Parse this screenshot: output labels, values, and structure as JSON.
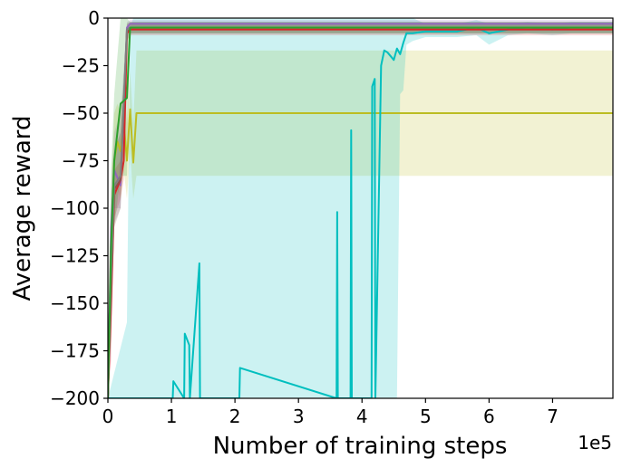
{
  "chart_data": {
    "type": "line",
    "title": "",
    "xlabel": "Number of training steps",
    "ylabel": "Average reward",
    "x_offset_label": "1e5",
    "xlim": [
      0,
      7.95
    ],
    "ylim": [
      -200,
      0
    ],
    "x_ticks": [
      0,
      1,
      2,
      3,
      4,
      5,
      6,
      7
    ],
    "x_tick_labels": [
      "0",
      "1",
      "2",
      "3",
      "4",
      "5",
      "6",
      "7"
    ],
    "y_ticks": [
      0,
      -25,
      -50,
      -75,
      -100,
      -125,
      -150,
      -175,
      -200
    ],
    "y_tick_labels": [
      "0",
      "−25",
      "−50",
      "−75",
      "−100",
      "−125",
      "−150",
      "−175",
      "−200"
    ],
    "grid": false,
    "legend": "none",
    "series": [
      {
        "color": "#bcbd22",
        "band_color": "#bcbd22",
        "x": [
          0,
          0.05,
          0.1,
          0.15,
          0.2,
          0.25,
          0.3,
          0.35,
          0.4,
          0.45,
          7.95
        ],
        "y": [
          -200,
          -120,
          -75,
          -65,
          -70,
          -55,
          -75,
          -48,
          -76,
          -50,
          -50
        ],
        "band_upper": [
          -150,
          -90,
          -50,
          -45,
          -50,
          -35,
          -55,
          -28,
          -55,
          -17,
          -17
        ],
        "band_lower": [
          -200,
          -150,
          -100,
          -90,
          -95,
          -80,
          -95,
          -70,
          -95,
          -83,
          -83
        ]
      },
      {
        "color": "#00bfbf",
        "band_color": "#00bfbf",
        "x": [
          0,
          0.3,
          0.35,
          0.4,
          1.02,
          1.03,
          1.2,
          1.21,
          1.28,
          1.29,
          1.44,
          1.45,
          1.52,
          2.07,
          2.08,
          3.6,
          3.61,
          3.62,
          3.82,
          3.83,
          3.84,
          4.15,
          4.16,
          4.2,
          4.21,
          4.3,
          4.35,
          4.4,
          4.5,
          4.55,
          4.6,
          4.65,
          4.7,
          4.8,
          5.0,
          5.5,
          5.8,
          6.0,
          6.3,
          6.6,
          7.0,
          7.3,
          7.6,
          7.95
        ],
        "y": [
          -200,
          -200,
          -200,
          -200,
          -200,
          -191,
          -200,
          -166,
          -172,
          -200,
          -129,
          -200,
          -200,
          -200,
          -184,
          -200,
          -102,
          -200,
          -200,
          -59,
          -200,
          -200,
          -36,
          -32,
          -200,
          -25,
          -17,
          -18,
          -22,
          -16,
          -19,
          -13,
          -8,
          -8,
          -7,
          -7,
          -5,
          -8,
          -6,
          -5,
          -6,
          -5,
          -5,
          -5
        ],
        "band_upper": [
          -200,
          -160,
          -5,
          0,
          0,
          0,
          0,
          0,
          0,
          0,
          0,
          0,
          0,
          0,
          0,
          0,
          0,
          0,
          0,
          0,
          0,
          0,
          0,
          0,
          0,
          0,
          0,
          0,
          0,
          0,
          0,
          0,
          0,
          0,
          -3,
          -3,
          -1,
          -3,
          -3,
          -2,
          -3,
          -2,
          -2,
          -2
        ],
        "band_lower": [
          -200,
          -200,
          -200,
          -200,
          -200,
          -200,
          -200,
          -200,
          -200,
          -200,
          -200,
          -200,
          -200,
          -200,
          -200,
          -200,
          -200,
          -200,
          -200,
          -200,
          -200,
          -200,
          -200,
          -200,
          -200,
          -200,
          -200,
          -200,
          -200,
          -200,
          -40,
          -38,
          -14,
          -12,
          -10,
          -10,
          -9,
          -14,
          -9,
          -8,
          -9,
          -8,
          -8,
          -8
        ]
      },
      {
        "color": "#9467bd",
        "band_color": "#9467bd",
        "x": [
          0,
          0.05,
          0.1,
          0.2,
          0.3,
          0.35,
          0.4,
          7.95
        ],
        "y": [
          -200,
          -110,
          -80,
          -88,
          -5,
          -3,
          -3,
          -3
        ],
        "band_upper": [
          -200,
          -90,
          -60,
          -50,
          -2,
          -1,
          -1,
          -1
        ],
        "band_lower": [
          -200,
          -130,
          -100,
          -100,
          -10,
          -5,
          -5,
          -5
        ]
      },
      {
        "color": "#d62728",
        "band_color": "#d62728",
        "x": [
          0,
          0.05,
          0.1,
          0.2,
          0.25,
          0.3,
          0.35,
          0.4,
          7.95
        ],
        "y": [
          -200,
          -150,
          -93,
          -85,
          -75,
          -8,
          -6,
          -6,
          -6
        ],
        "band_upper": [
          -200,
          -120,
          -80,
          -75,
          -65,
          -5,
          -3,
          -3,
          -3
        ],
        "band_lower": [
          -200,
          -180,
          -105,
          -95,
          -85,
          -12,
          -9,
          -9,
          -9
        ]
      },
      {
        "color": "#8c564b",
        "band_color": "#8c564b",
        "x": [
          0,
          0.05,
          0.1,
          0.2,
          0.3,
          0.35,
          0.4,
          7.95
        ],
        "y": [
          -200,
          -140,
          -90,
          -85,
          -7,
          -5,
          -5,
          -5
        ],
        "band_upper": [
          -200,
          -110,
          -70,
          -60,
          -3,
          -2,
          -2,
          -2
        ],
        "band_lower": [
          -200,
          -170,
          -110,
          -100,
          -12,
          -8,
          -8,
          -8
        ]
      },
      {
        "color": "#7f7f7f",
        "band_color": "#7f7f7f",
        "x": [
          0,
          0.05,
          0.1,
          0.2,
          0.3,
          0.35,
          0.4,
          7.95
        ],
        "y": [
          -200,
          -135,
          -88,
          -83,
          -6,
          -5,
          -5,
          -5
        ],
        "band_upper": [
          -200,
          -105,
          -70,
          -60,
          -3,
          -2,
          -2,
          -2
        ],
        "band_lower": [
          -200,
          -165,
          -108,
          -100,
          -10,
          -8,
          -8,
          -8
        ]
      },
      {
        "color": "#2ca02c",
        "band_color": "#2ca02c",
        "x": [
          0,
          0.05,
          0.1,
          0.2,
          0.3,
          0.35,
          0.4,
          7.95
        ],
        "y": [
          -200,
          -120,
          -75,
          -45,
          -42,
          -5,
          -5,
          -5
        ],
        "band_upper": [
          -200,
          -80,
          -40,
          0,
          0,
          -2,
          -2,
          -2
        ],
        "band_lower": [
          -200,
          -160,
          -110,
          -83,
          -83,
          -8,
          -8,
          -8
        ]
      }
    ]
  }
}
